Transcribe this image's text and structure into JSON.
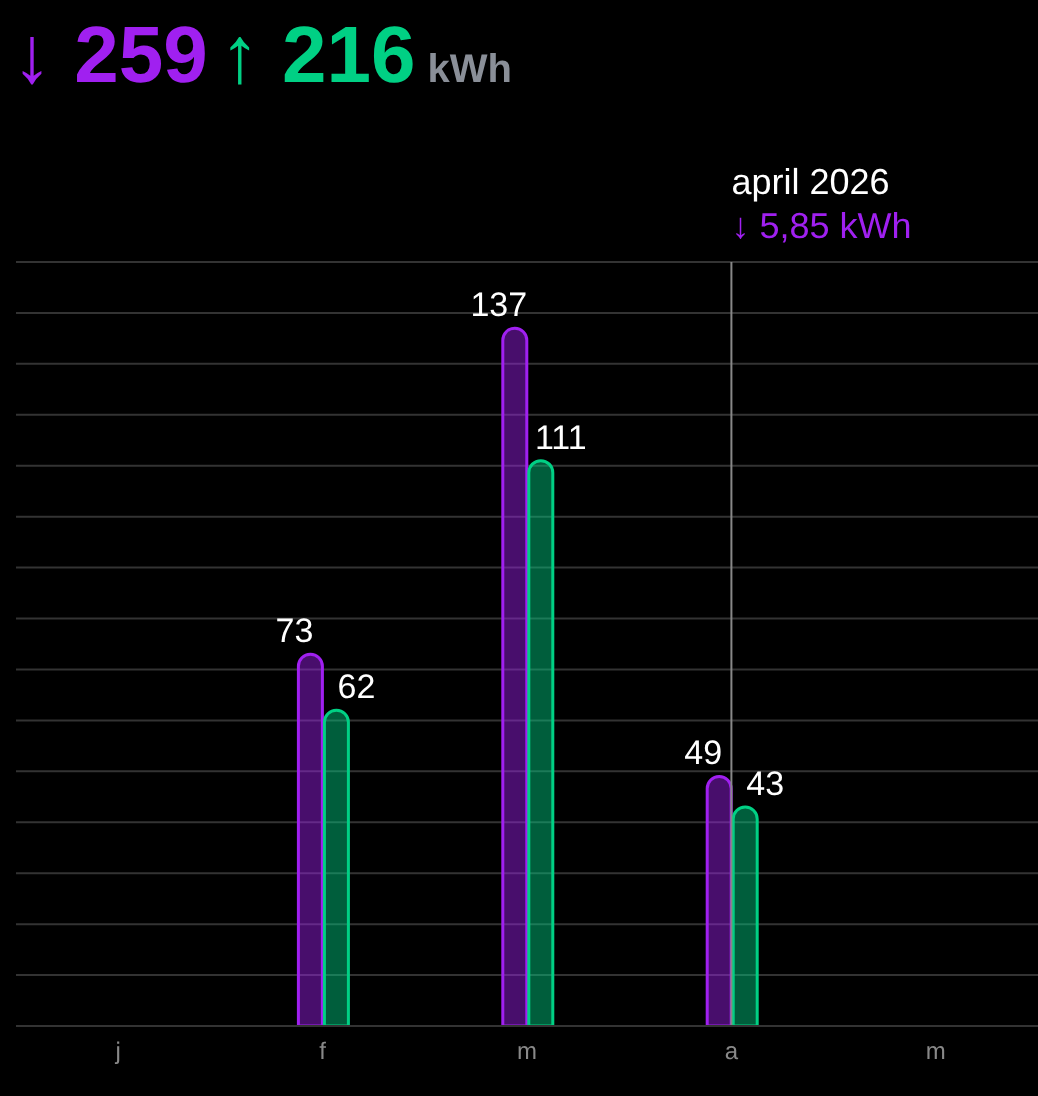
{
  "chart_data": {
    "type": "bar",
    "categories": [
      "j",
      "f",
      "m",
      "a",
      "m"
    ],
    "series": [
      {
        "name": null,
        "color": "#a020f0",
        "values": [
          null,
          73,
          137,
          49,
          null
        ]
      },
      {
        "name": null,
        "color": "#00d084",
        "values": [
          null,
          62,
          111,
          43,
          null
        ]
      }
    ],
    "ylim": [
      0,
      150
    ],
    "yticks": [
      {
        "value": 0,
        "label": null
      },
      {
        "value": 10,
        "label": null
      },
      {
        "value": 20,
        "label": null
      },
      {
        "value": 30,
        "label": null
      },
      {
        "value": 40,
        "label": null
      },
      {
        "value": 50,
        "label": null
      },
      {
        "value": 60,
        "label": null
      },
      {
        "value": 70,
        "label": null
      },
      {
        "value": 80,
        "label": null
      },
      {
        "value": 90,
        "label": null
      },
      {
        "value": 100,
        "label": null
      },
      {
        "value": 110,
        "label": null
      },
      {
        "value": 120,
        "label": null
      },
      {
        "value": 130,
        "label": null
      },
      {
        "value": 140,
        "label": null
      },
      {
        "value": 150,
        "label": null
      }
    ],
    "grid": "y",
    "tick_labels": "x",
    "data_labels": true,
    "legend": false,
    "ref_lines": [
      {
        "axis": "x",
        "value": "a",
        "label": "april 2026",
        "color": "#888888"
      }
    ],
    "annotations": [
      "↓ 259",
      "↑ 216",
      "kWh",
      "↓ 5,85 kWh"
    ]
  }
}
